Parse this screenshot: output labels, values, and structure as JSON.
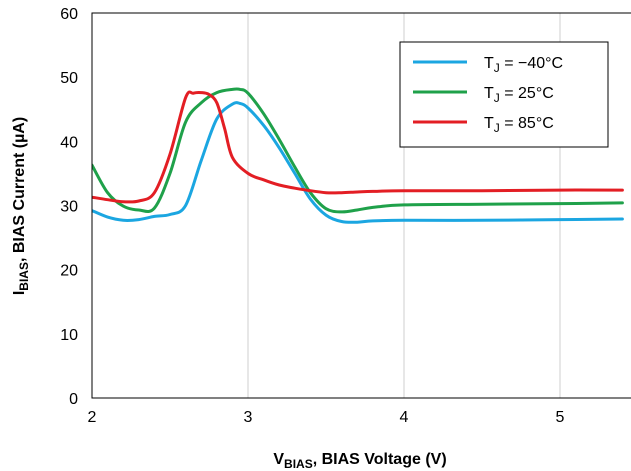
{
  "chart_data": {
    "type": "line",
    "xlabel": {
      "main": "V",
      "sub": "BIAS",
      "rest": ", BIAS Voltage (V)"
    },
    "ylabel": {
      "main": "I",
      "sub": "BIAS",
      "rest": ", BIAS Current (µA)"
    },
    "xlim": [
      2,
      5.4
    ],
    "ylim": [
      0,
      60
    ],
    "xticks": [
      "2",
      "3",
      "4",
      "5"
    ],
    "yticks": [
      "0",
      "10",
      "20",
      "30",
      "40",
      "50",
      "60"
    ],
    "grid": "vertical",
    "legend_position": "top-right",
    "series": [
      {
        "name": {
          "main": "T",
          "sub": "J",
          "rest": " = −40°C"
        },
        "color": "#1BA6E1",
        "x": [
          2.0,
          2.1,
          2.2,
          2.3,
          2.4,
          2.5,
          2.6,
          2.7,
          2.8,
          2.9,
          2.95,
          3.0,
          3.1,
          3.2,
          3.3,
          3.4,
          3.5,
          3.6,
          3.7,
          3.8,
          4.0,
          4.5,
          5.0,
          5.4
        ],
        "y": [
          29.2,
          28.2,
          27.7,
          27.8,
          28.3,
          28.6,
          30.0,
          37.0,
          43.5,
          45.8,
          45.9,
          45.2,
          42.5,
          39.0,
          35.0,
          31.0,
          28.5,
          27.5,
          27.4,
          27.6,
          27.7,
          27.7,
          27.8,
          27.9
        ]
      },
      {
        "name": {
          "main": "T",
          "sub": "J",
          "rest": " = 25°C"
        },
        "color": "#1FA14A",
        "x": [
          2.0,
          2.1,
          2.2,
          2.3,
          2.4,
          2.5,
          2.6,
          2.7,
          2.8,
          2.9,
          2.95,
          3.0,
          3.1,
          3.2,
          3.3,
          3.4,
          3.5,
          3.6,
          3.7,
          3.8,
          4.0,
          4.5,
          5.0,
          5.4
        ],
        "y": [
          36.3,
          32.0,
          29.9,
          29.3,
          29.6,
          35.0,
          43.0,
          46.0,
          47.6,
          48.1,
          48.1,
          47.5,
          44.3,
          40.3,
          36.0,
          32.0,
          29.5,
          29.0,
          29.3,
          29.7,
          30.1,
          30.2,
          30.3,
          30.4
        ]
      },
      {
        "name": {
          "main": "T",
          "sub": "J",
          "rest": " = 85°C"
        },
        "color": "#E31E24",
        "x": [
          2.0,
          2.1,
          2.2,
          2.3,
          2.4,
          2.5,
          2.6,
          2.65,
          2.7,
          2.75,
          2.8,
          2.85,
          2.9,
          3.0,
          3.1,
          3.2,
          3.3,
          3.4,
          3.5,
          3.6,
          3.7,
          3.8,
          4.0,
          4.5,
          5.0,
          5.4
        ],
        "y": [
          31.3,
          30.9,
          30.6,
          30.7,
          32.0,
          38.0,
          46.8,
          47.5,
          47.6,
          47.3,
          46.0,
          42.0,
          37.5,
          35.0,
          34.0,
          33.2,
          32.7,
          32.3,
          32.0,
          32.0,
          32.1,
          32.2,
          32.3,
          32.3,
          32.4,
          32.4
        ]
      }
    ]
  }
}
